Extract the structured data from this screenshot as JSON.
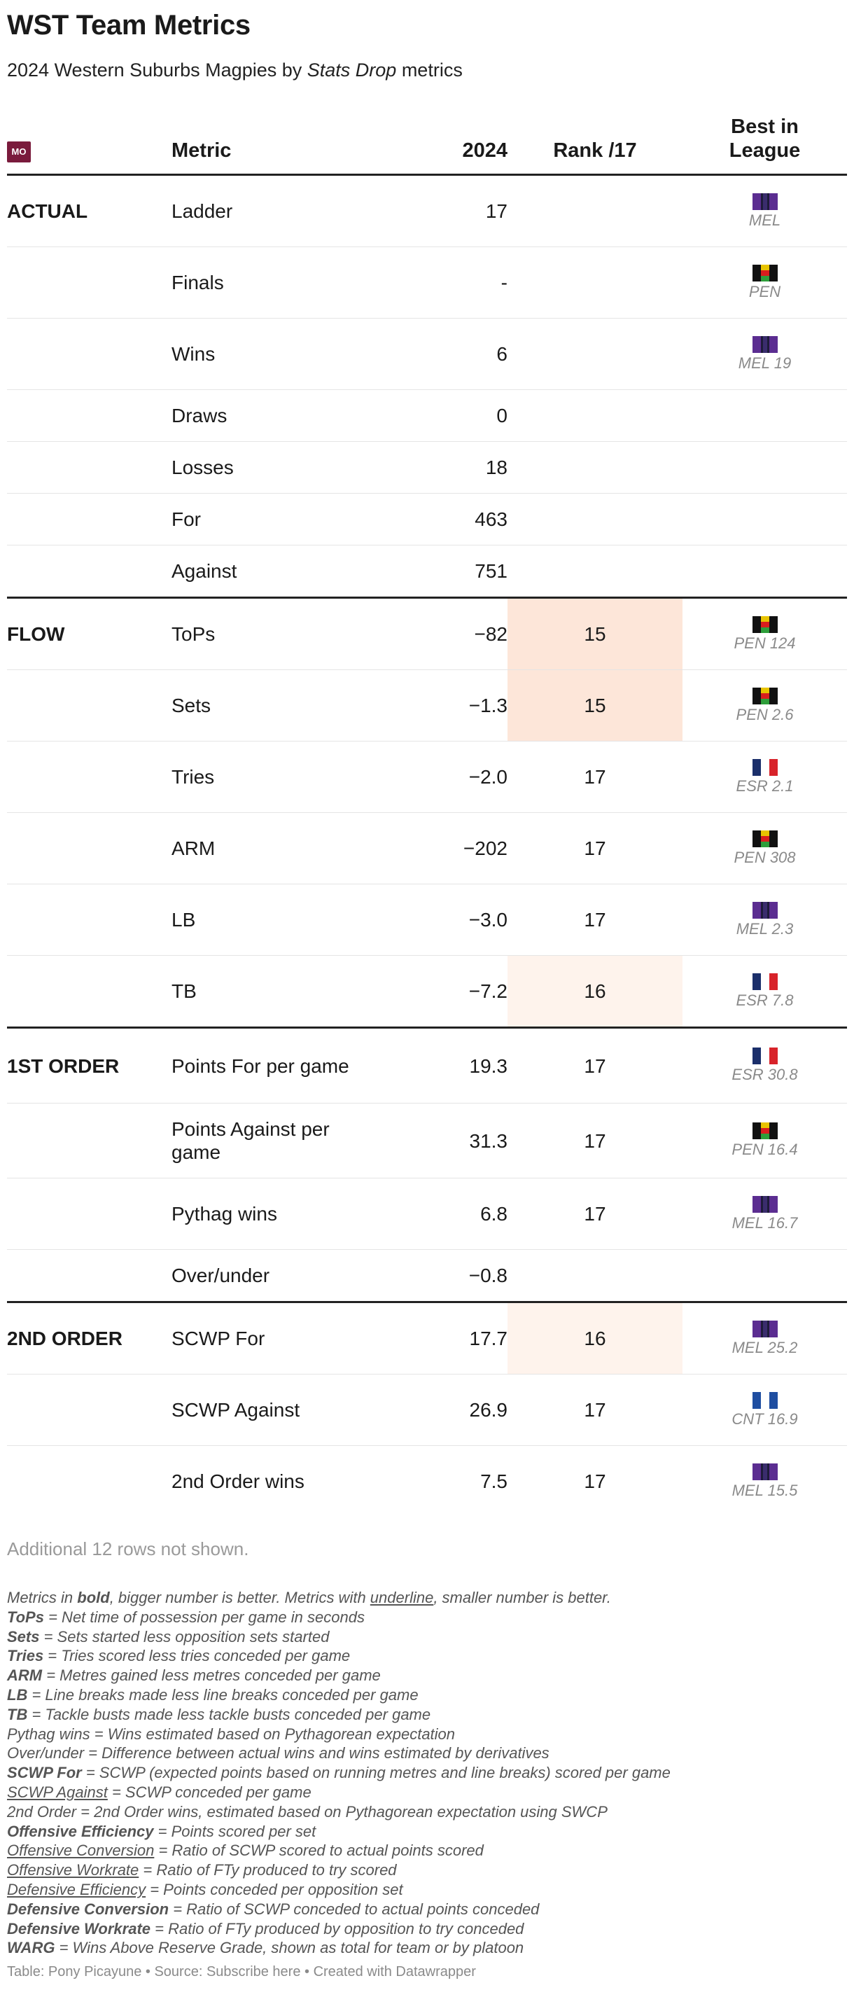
{
  "title": "WST Team Metrics",
  "subtitle": {
    "before": "2024 Western Suburbs Magpies by ",
    "em": "Stats Drop",
    "after": " metrics"
  },
  "header": {
    "logo_text": "MO",
    "metric": "Metric",
    "year": "2024",
    "rank": "Rank /17",
    "best_line1": "Best in",
    "best_line2": "League"
  },
  "colors": {
    "highlight_strong": "#fde6d9",
    "highlight_light": "#fef3ec",
    "logo": "#7a1b3c"
  },
  "rows": [
    {
      "group": "ACTUAL",
      "metric": "Ladder",
      "value": "17",
      "rank": "",
      "best": "MEL",
      "flag": "MEL"
    },
    {
      "group": "",
      "metric": "Finals",
      "value": "-",
      "rank": "",
      "best": "PEN",
      "flag": "PEN"
    },
    {
      "group": "",
      "metric": "Wins",
      "value": "6",
      "rank": "",
      "best": "MEL 19",
      "flag": "MEL"
    },
    {
      "group": "",
      "metric": "Draws",
      "value": "0",
      "rank": "",
      "best": "",
      "flag": ""
    },
    {
      "group": "",
      "metric": "Losses",
      "value": "18",
      "rank": "",
      "best": "",
      "flag": ""
    },
    {
      "group": "",
      "metric": "For",
      "value": "463",
      "rank": "",
      "best": "",
      "flag": ""
    },
    {
      "group": "",
      "metric": "Against",
      "value": "751",
      "rank": "",
      "best": "",
      "flag": ""
    },
    {
      "group": "FLOW",
      "metric": "ToPs",
      "value": "−82",
      "rank": "15",
      "best": "PEN 124",
      "flag": "PEN"
    },
    {
      "group": "",
      "metric": "Sets",
      "value": "−1.3",
      "rank": "15",
      "best": "PEN 2.6",
      "flag": "PEN"
    },
    {
      "group": "",
      "metric": "Tries",
      "value": "−2.0",
      "rank": "17",
      "best": "ESR 2.1",
      "flag": "ESR"
    },
    {
      "group": "",
      "metric": "ARM",
      "value": "−202",
      "rank": "17",
      "best": "PEN 308",
      "flag": "PEN"
    },
    {
      "group": "",
      "metric": "LB",
      "value": "−3.0",
      "rank": "17",
      "best": "MEL 2.3",
      "flag": "MEL"
    },
    {
      "group": "",
      "metric": "TB",
      "value": "−7.2",
      "rank": "16",
      "best": "ESR 7.8",
      "flag": "ESR"
    },
    {
      "group": "1ST ORDER",
      "metric": "Points For per game",
      "value": "19.3",
      "rank": "17",
      "best": "ESR 30.8",
      "flag": "ESR"
    },
    {
      "group": "",
      "metric": "Points Against per game",
      "value": "31.3",
      "rank": "17",
      "best": "PEN 16.4",
      "flag": "PEN"
    },
    {
      "group": "",
      "metric": "Pythag wins",
      "value": "6.8",
      "rank": "17",
      "best": "MEL 16.7",
      "flag": "MEL"
    },
    {
      "group": "",
      "metric": "Over/under",
      "value": "−0.8",
      "rank": "",
      "best": "",
      "flag": ""
    },
    {
      "group": "2ND ORDER",
      "metric": "SCWP For",
      "value": "17.7",
      "rank": "16",
      "best": "MEL 25.2",
      "flag": "MEL"
    },
    {
      "group": "",
      "metric": "SCWP Against",
      "value": "26.9",
      "rank": "17",
      "best": "CNT 16.9",
      "flag": "CNT"
    },
    {
      "group": "",
      "metric": "2nd Order wins",
      "value": "7.5",
      "rank": "17",
      "best": "MEL 15.5",
      "flag": "MEL"
    }
  ],
  "rows_note": "Additional 12 rows not shown.",
  "legend": {
    "intro_a": "Metrics in ",
    "intro_bold": "bold",
    "intro_b": ", bigger number is better. Metrics with ",
    "intro_under": "underline",
    "intro_c": ", smaller number is better.",
    "tops_k": "ToPs",
    "tops_v": " = Net time of possession per game in seconds",
    "sets_k": "Sets",
    "sets_v": " = Sets started less opposition sets started",
    "tries_k": "Tries",
    "tries_v": " = Tries scored less tries conceded per game",
    "arm_k": "ARM",
    "arm_v": " = Metres gained less metres conceded per game",
    "lb_k": "LB",
    "lb_v": " = Line breaks made less line breaks conceded per game",
    "tb_k": "TB",
    "tb_v": " = Tackle busts made less tackle busts conceded per game",
    "pythag": "Pythag wins = Wins estimated based on Pythagorean expectation",
    "overunder": "Over/under = Difference between actual wins and wins estimated by derivatives",
    "scwpf_k": "SCWP For",
    "scwpf_v": " = SCWP (expected points based on running metres and line breaks) scored per game",
    "scwpa_k": "SCWP Against",
    "scwpa_v": " = SCWP conceded per game",
    "second": "2nd Order = 2nd Order wins, estimated based on Pythagorean expectation using SWCP",
    "oe_k": "Offensive Efficiency",
    "oe_v": " = Points scored per set",
    "oc_k": "Offensive Conversion",
    "oc_v": " = Ratio of SCWP scored to actual points scored",
    "ow_k": "Offensive Workrate",
    "ow_v": " = Ratio of FTy produced to try scored",
    "de_k": "Defensive Efficiency",
    "de_v": " = Points conceded per opposition set",
    "dc_k": "Defensive Conversion",
    "dc_v": " = Ratio of SCWP conceded to actual points conceded",
    "dw_k": "Defensive Workrate",
    "dw_v": " = Ratio of FTy produced by opposition to try conceded",
    "warg_k": "WARG",
    "warg_v": " = Wins Above Reserve Grade, shown as total for team or by platoon"
  },
  "credit": "Table: Pony Picayune • Source: Subscribe here • Created with Datawrapper"
}
